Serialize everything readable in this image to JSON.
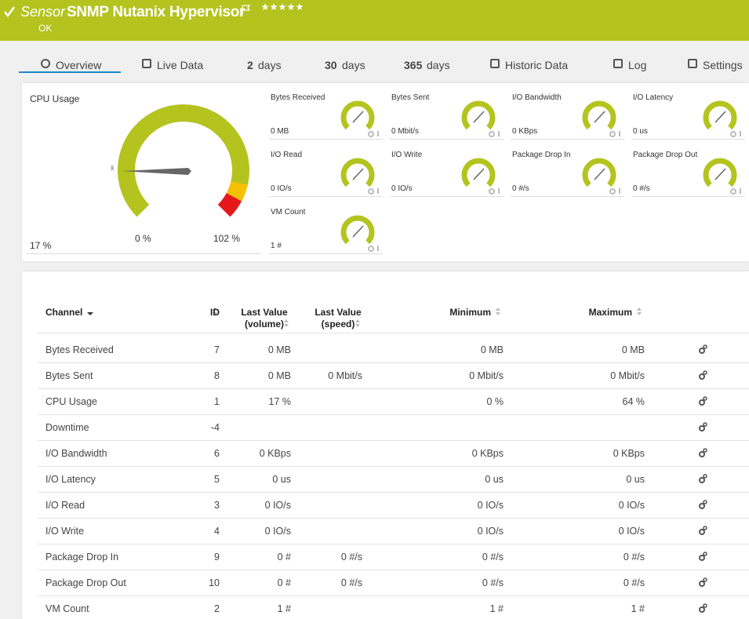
{
  "header": {
    "prefix": "Sensor",
    "title": "SNMP Nutanix Hypervisor",
    "status": "OK"
  },
  "tabs": [
    {
      "label": "Overview"
    },
    {
      "label": "Live Data"
    },
    {
      "count": "2",
      "unit": "days"
    },
    {
      "count": "30",
      "unit": "days"
    },
    {
      "count": "365",
      "unit": "days"
    },
    {
      "label": "Historic Data"
    },
    {
      "label": "Log"
    },
    {
      "label": "Settings"
    }
  ],
  "main_gauge": {
    "title": "CPU Usage",
    "avg_marker": "x̄",
    "value": "17 %",
    "min": "0 %",
    "max": "102 %"
  },
  "gauges": [
    {
      "label": "Bytes Received",
      "value": "0 MB"
    },
    {
      "label": "Bytes Sent",
      "value": "0 Mbit/s"
    },
    {
      "label": "I/O Bandwidth",
      "value": "0 KBps"
    },
    {
      "label": "I/O Latency",
      "value": "0 us"
    },
    {
      "label": "I/O Read",
      "value": "0 IO/s"
    },
    {
      "label": "I/O Write",
      "value": "0 IO/s"
    },
    {
      "label": "Package Drop In",
      "value": "0 #/s"
    },
    {
      "label": "Package Drop Out",
      "value": "0 #/s"
    },
    {
      "label": "VM Count",
      "value": "1 #"
    }
  ],
  "table": {
    "headers": [
      "Channel",
      "ID",
      "Last Value (volume)",
      "Last Value (speed)",
      "Minimum",
      "Maximum"
    ],
    "rows": [
      [
        "Bytes Received",
        "7",
        "0 MB",
        "",
        "0 MB",
        "0 MB"
      ],
      [
        "Bytes Sent",
        "8",
        "0 MB",
        "0 Mbit/s",
        "0 Mbit/s",
        "0 Mbit/s"
      ],
      [
        "CPU Usage",
        "1",
        "17 %",
        "",
        "0 %",
        "64 %"
      ],
      [
        "Downtime",
        "-4",
        "",
        "",
        "",
        ""
      ],
      [
        "I/O Bandwidth",
        "6",
        "0 KBps",
        "",
        "0 KBps",
        "0 KBps"
      ],
      [
        "I/O Latency",
        "5",
        "0 us",
        "",
        "0 us",
        "0 us"
      ],
      [
        "I/O Read",
        "3",
        "0 IO/s",
        "",
        "0 IO/s",
        "0 IO/s"
      ],
      [
        "I/O Write",
        "4",
        "0 IO/s",
        "",
        "0 IO/s",
        "0 IO/s"
      ],
      [
        "Package Drop In",
        "9",
        "0 #",
        "0 #/s",
        "0 #/s",
        "0 #/s"
      ],
      [
        "Package Drop Out",
        "10",
        "0 #",
        "0 #/s",
        "0 #/s",
        "0 #/s"
      ],
      [
        "VM Count",
        "2",
        "1 #",
        "",
        "1 #",
        "1 #"
      ]
    ]
  }
}
